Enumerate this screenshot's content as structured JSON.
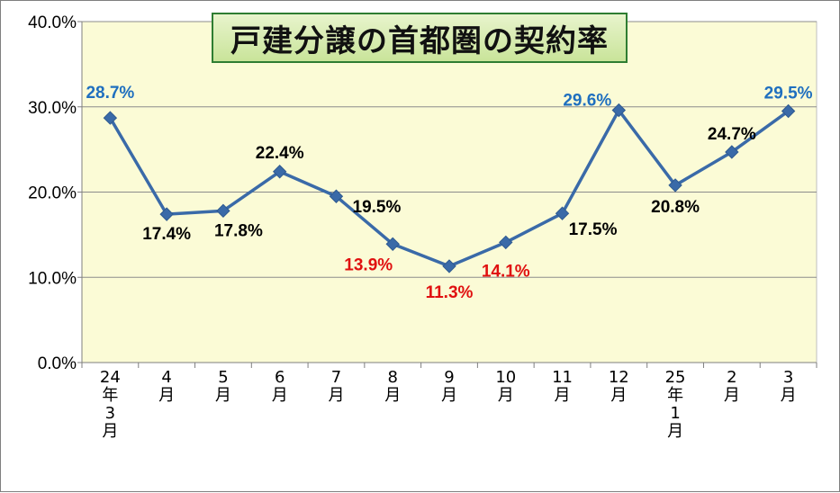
{
  "chart_data": {
    "type": "line",
    "title": "戸建分譲の首都圏の契約率",
    "categories": [
      "24年3月",
      "4月",
      "5月",
      "6月",
      "7月",
      "8月",
      "9月",
      "10月",
      "11月",
      "12月",
      "25年1月",
      "2月",
      "3月"
    ],
    "series": [
      {
        "values": [
          28.7,
          17.4,
          17.8,
          22.4,
          19.5,
          13.9,
          11.3,
          14.1,
          17.5,
          29.6,
          20.8,
          24.7,
          29.5
        ],
        "labels": [
          "28.7%",
          "17.4%",
          "17.8%",
          "22.4%",
          "19.5%",
          "13.9%",
          "11.3%",
          "14.1%",
          "17.5%",
          "29.6%",
          "20.8%",
          "24.7%",
          "29.5%"
        ],
        "color": "#3a6aa8",
        "marker": "diamond"
      }
    ],
    "label_colors": [
      "#1f6fbf",
      "#000000",
      "#000000",
      "#000000",
      "#000000",
      "#e01010",
      "#e01010",
      "#e01010",
      "#000000",
      "#1f6fbf",
      "#000000",
      "#000000",
      "#1f6fbf"
    ],
    "ylim": [
      0,
      40
    ],
    "yticks": [
      "0.0%",
      "10.0%",
      "20.0%",
      "30.0%",
      "40.0%"
    ],
    "grid": true,
    "legend": "none",
    "plot_background": "#fbfbd6"
  }
}
